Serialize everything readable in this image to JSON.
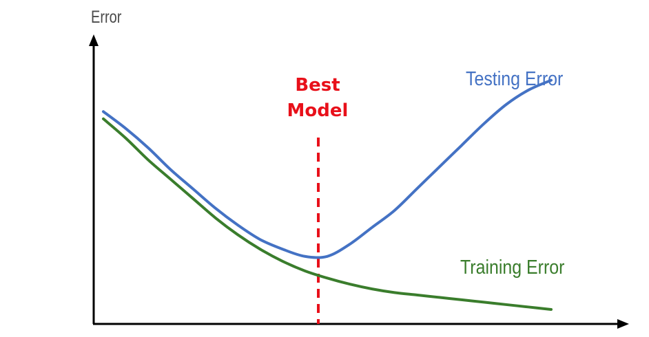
{
  "chart_data": {
    "type": "line",
    "ylabel": "Error",
    "xlabel": "",
    "x": [
      0,
      0.05,
      0.1,
      0.15,
      0.2,
      0.25,
      0.3,
      0.35,
      0.4,
      0.45,
      0.5,
      0.55,
      0.6,
      0.65,
      0.7,
      0.75,
      0.8,
      0.85,
      0.9,
      0.95,
      1.0
    ],
    "series": [
      {
        "name": "Testing Error",
        "color": "#4472c4",
        "values": [
          0.88,
          0.81,
          0.73,
          0.64,
          0.56,
          0.48,
          0.41,
          0.35,
          0.31,
          0.28,
          0.28,
          0.33,
          0.4,
          0.47,
          0.56,
          0.65,
          0.74,
          0.83,
          0.91,
          0.97,
          1.01
        ]
      },
      {
        "name": "Training Error",
        "color": "#3a7d2c",
        "values": [
          0.85,
          0.77,
          0.68,
          0.6,
          0.52,
          0.44,
          0.37,
          0.31,
          0.26,
          0.22,
          0.19,
          0.165,
          0.145,
          0.13,
          0.12,
          0.11,
          0.1,
          0.09,
          0.08,
          0.07,
          0.06
        ]
      }
    ],
    "annotations": [
      {
        "lines": [
          "Best",
          "Model"
        ],
        "x": 0.48,
        "color": "#e8101a",
        "style": "dashed vertical line"
      }
    ],
    "xlim": [
      0,
      1
    ],
    "ylim": [
      0,
      1.2
    ],
    "grid": false,
    "legend": "inline labels"
  },
  "colors": {
    "axis": "#000000",
    "testing": "#4472c4",
    "training": "#3a7d2c",
    "best_model": "#e8101a",
    "text": "#4a4a4a"
  }
}
